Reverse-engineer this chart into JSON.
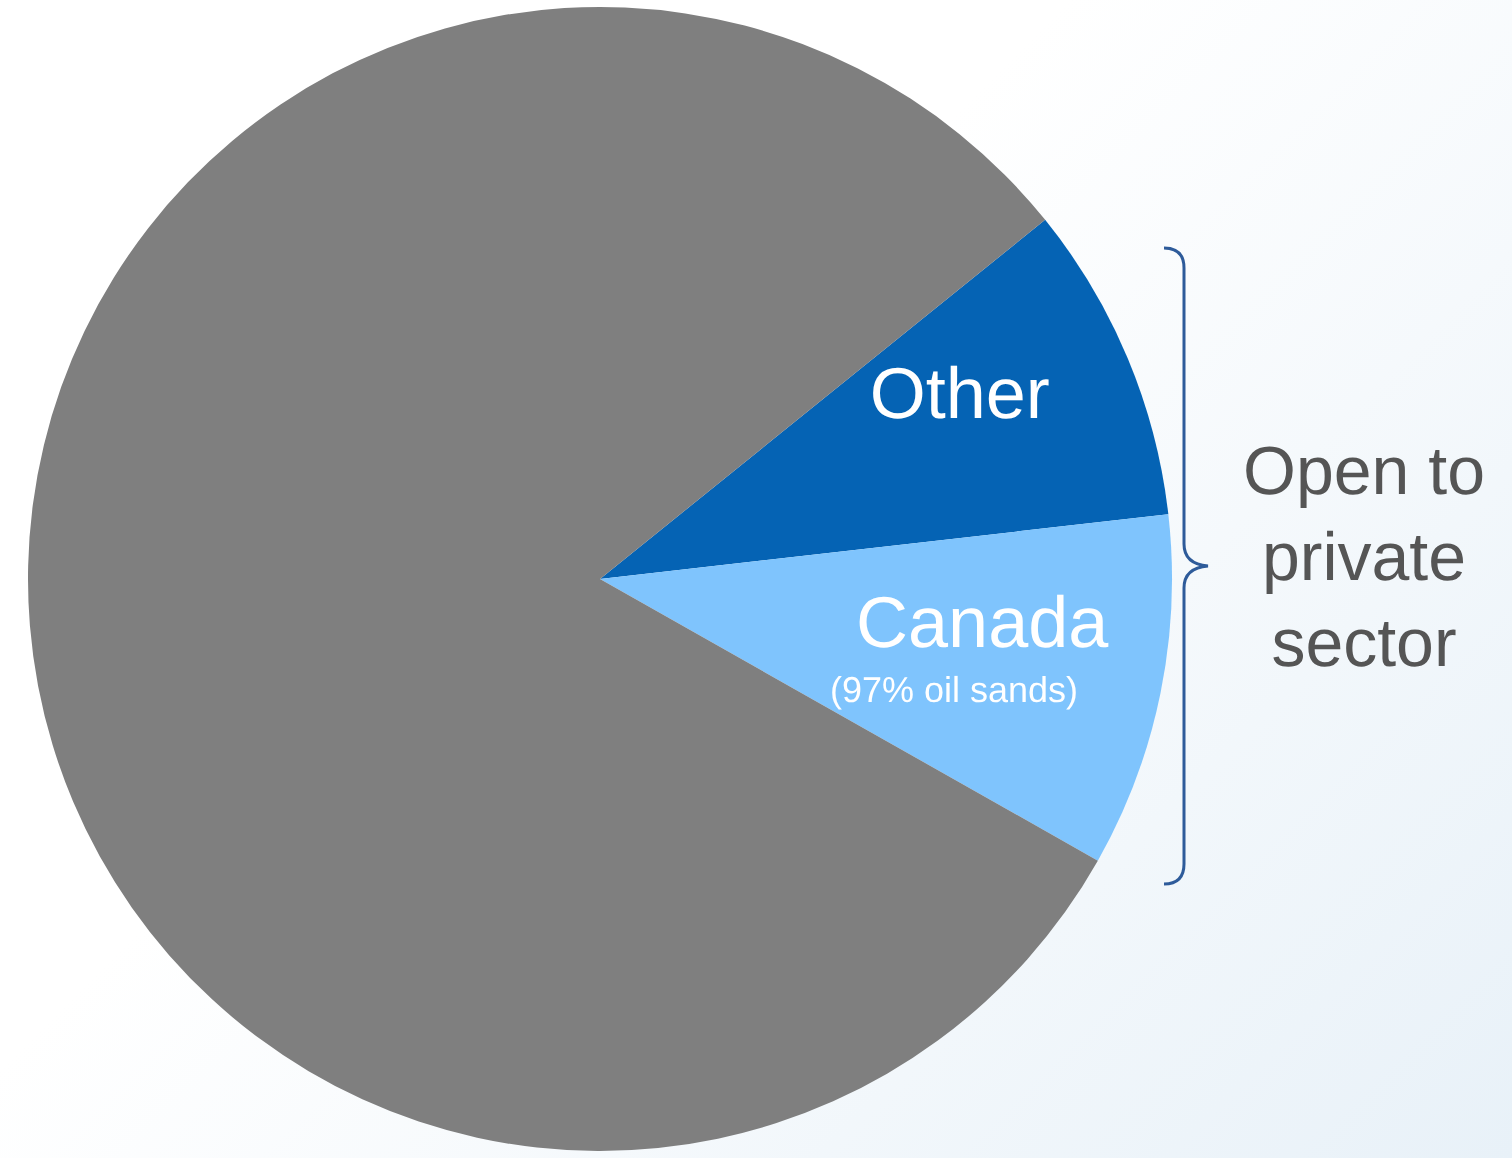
{
  "chart_data": {
    "type": "pie",
    "categories": [
      "Other",
      "Canada",
      null
    ],
    "values": [
      9,
      10,
      81
    ],
    "colors": [
      "#0563b4",
      "#7fc4fd",
      "#7f7f7f"
    ],
    "annotations": [
      "(97% oil sands)",
      "Open to private sector"
    ]
  }
}
